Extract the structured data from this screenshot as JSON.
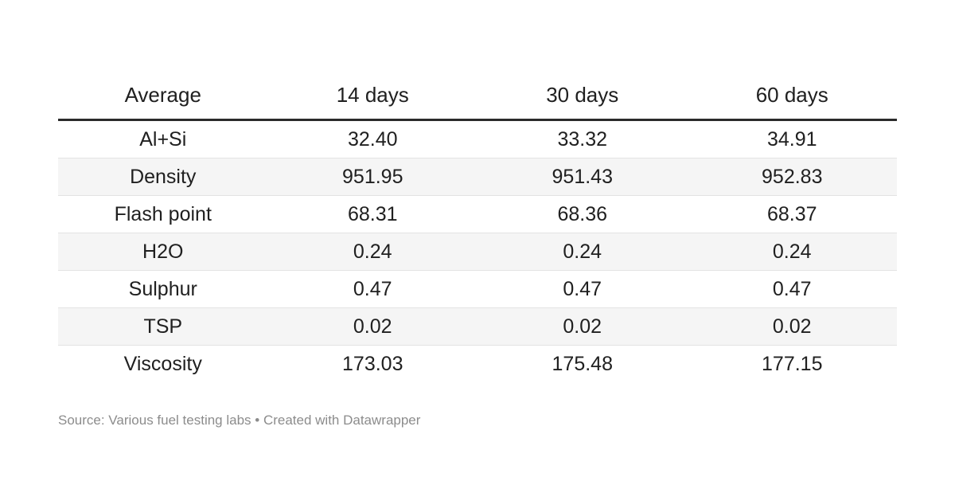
{
  "chart_data": {
    "type": "table",
    "columns": [
      "Average",
      "14 days",
      "30 days",
      "60 days"
    ],
    "rows": [
      {
        "label": "Al+Si",
        "values": [
          "32.40",
          "33.32",
          "34.91"
        ]
      },
      {
        "label": "Density",
        "values": [
          "951.95",
          "951.43",
          "952.83"
        ]
      },
      {
        "label": "Flash point",
        "values": [
          "68.31",
          "68.36",
          "68.37"
        ]
      },
      {
        "label": "H2O",
        "values": [
          "0.24",
          "0.24",
          "0.24"
        ]
      },
      {
        "label": "Sulphur",
        "values": [
          "0.47",
          "0.47",
          "0.47"
        ]
      },
      {
        "label": "TSP",
        "values": [
          "0.02",
          "0.02",
          "0.02"
        ]
      },
      {
        "label": "Viscosity",
        "values": [
          "173.03",
          "175.48",
          "177.15"
        ]
      }
    ],
    "layout": {
      "striped_rows": true,
      "value_alignment": "center",
      "header_rule": "thick-top-rule-below-header"
    }
  },
  "footer": {
    "source_text": "Source: Various fuel testing labs • Created with Datawrapper"
  },
  "colors": {
    "background": "#ffffff",
    "text": "#202020",
    "header_rule": "#2b2b2b",
    "row_stripe": "#f5f5f5",
    "row_divider": "#e3e3e3",
    "source_text": "#8c8c8c"
  }
}
